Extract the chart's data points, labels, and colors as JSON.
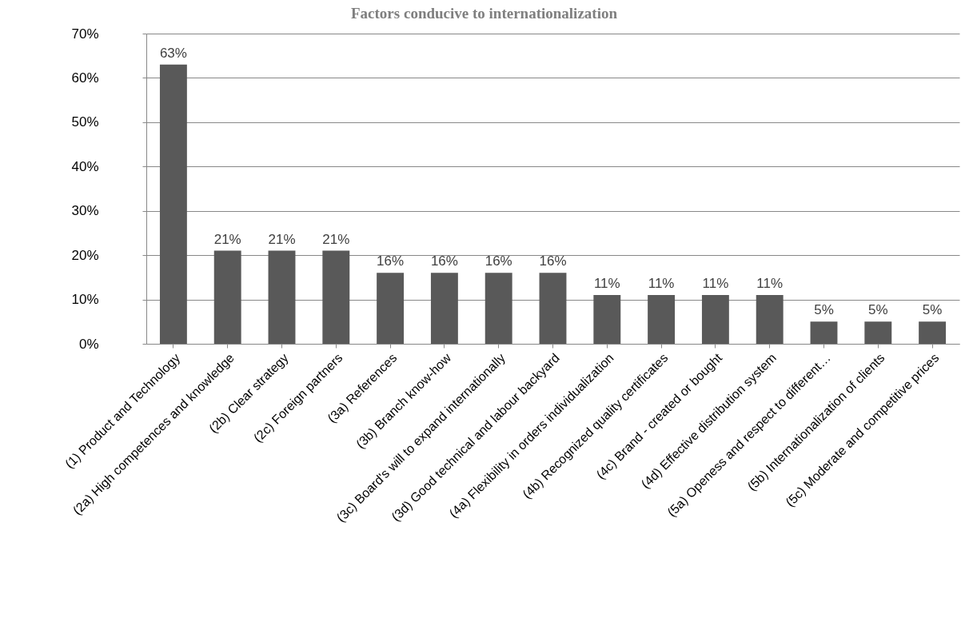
{
  "chart_data": {
    "type": "bar",
    "title": "Factors conducive to internationalization",
    "categories": [
      "(1) Product and Technology",
      "(2a) High competences and knowledge",
      "(2b) Clear strategy",
      "(2c) Foreign partners",
      "(3a) References",
      "(3b) Branch know-how",
      "(3c) Board's will to expand internationally",
      "(3d) Good technical and labour backyard",
      "(4a) Flexibility in orders individualization",
      "(4b) Recognized quality certificates",
      "(4c) Brand - created or bought",
      "(4d) Effective distribution system",
      "(5a) Openess and respect to different…",
      "(5b) Internationalization of clients",
      "(5c) Moderate and competitive prices"
    ],
    "values": [
      63,
      21,
      21,
      21,
      16,
      16,
      16,
      16,
      11,
      11,
      11,
      11,
      5,
      5,
      5
    ],
    "value_labels": [
      "63%",
      "21%",
      "21%",
      "21%",
      "16%",
      "16%",
      "16%",
      "16%",
      "11%",
      "11%",
      "11%",
      "11%",
      "5%",
      "5%",
      "5%"
    ],
    "color": "#595959",
    "ylim": [
      0,
      70
    ],
    "yticks": [
      {
        "value": 0,
        "label": "0%"
      },
      {
        "value": 10,
        "label": "10%"
      },
      {
        "value": 20,
        "label": "20%"
      },
      {
        "value": 30,
        "label": "30%"
      },
      {
        "value": 40,
        "label": "40%"
      },
      {
        "value": 50,
        "label": "50%"
      },
      {
        "value": 60,
        "label": "60%"
      },
      {
        "value": 70,
        "label": "70%"
      }
    ],
    "grid": "y"
  }
}
